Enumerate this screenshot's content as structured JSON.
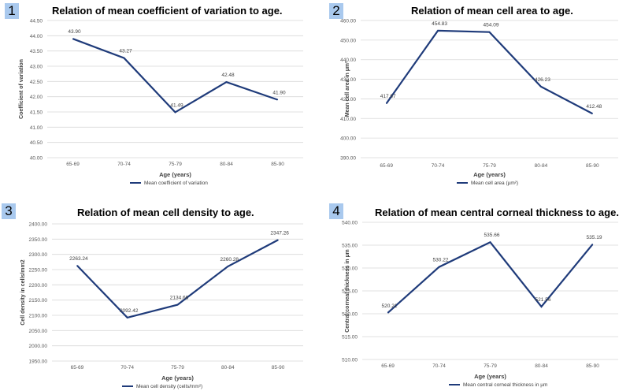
{
  "chart_data": [
    {
      "type": "line",
      "panel_number": "1",
      "title": "Relation of mean coefficient of variation to age.",
      "xlabel": "Age (years)",
      "ylabel": "Coefficient of variation",
      "categories": [
        "65-69",
        "70-74",
        "75-79",
        "80-84",
        "85-90"
      ],
      "series": [
        {
          "name": "Mean coefficient of variation",
          "values": [
            43.9,
            43.27,
            41.49,
            42.48,
            41.9
          ],
          "labels": [
            "43.90",
            "43.27",
            "41.49",
            "42.48",
            "41.90"
          ]
        }
      ],
      "ylim": [
        40.0,
        44.5
      ],
      "yticks": [
        "40.00",
        "40.50",
        "41.00",
        "41.50",
        "42.00",
        "42.50",
        "43.00",
        "43.50",
        "44.00",
        "44.50"
      ],
      "grid": true,
      "legend": "bottom",
      "color": "#1f3b7a"
    },
    {
      "type": "line",
      "panel_number": "2",
      "title": "Relation of mean cell area to age.",
      "xlabel": "Age (years)",
      "ylabel": "Mean cell area in µm²",
      "categories": [
        "65-69",
        "70-74",
        "75-79",
        "80-84",
        "85-90"
      ],
      "series": [
        {
          "name": "Mean cell area (µm²)",
          "values": [
            417.67,
            454.83,
            454.09,
            426.23,
            412.48
          ],
          "labels": [
            "417.67",
            "454.83",
            "454.09",
            "426.23",
            "412.48"
          ]
        }
      ],
      "ylim": [
        390.0,
        460.0
      ],
      "yticks": [
        "390.00",
        "400.00",
        "410.00",
        "420.00",
        "430.00",
        "440.00",
        "450.00",
        "460.00"
      ],
      "grid": true,
      "legend": "bottom",
      "color": "#1f3b7a"
    },
    {
      "type": "line",
      "panel_number": "3",
      "title": "Relation of mean cell density to age.",
      "xlabel": "Age (years)",
      "ylabel": "Cell density in cells/mm2",
      "categories": [
        "65-69",
        "70-74",
        "75-79",
        "80-84",
        "85-90"
      ],
      "series": [
        {
          "name": "Mean cell density (cells/mm²)",
          "values": [
            2263.24,
            2092.42,
            2134.66,
            2260.28,
            2347.26
          ],
          "labels": [
            "2263.24",
            "2092.42",
            "2134.66",
            "2260.28",
            "2347.26"
          ]
        }
      ],
      "ylim": [
        1950.0,
        2400.0
      ],
      "yticks": [
        "1950.00",
        "2000.00",
        "2050.00",
        "2100.00",
        "2150.00",
        "2200.00",
        "2250.00",
        "2300.00",
        "2350.00",
        "2400.00"
      ],
      "grid": true,
      "legend": "bottom",
      "color": "#1f3b7a"
    },
    {
      "type": "line",
      "panel_number": "4",
      "title": "Relation of mean central corneal thickness to age.",
      "xlabel": "Age (years)",
      "ylabel": "Central corneal thickness in µm",
      "categories": [
        "65-69",
        "70-74",
        "75-79",
        "80-84",
        "85-90"
      ],
      "series": [
        {
          "name": "Mean central corneal thickness in µm",
          "values": [
            520.21,
            530.22,
            535.66,
            521.56,
            535.19
          ],
          "labels": [
            "520.21",
            "530.22",
            "535.66",
            "521.56",
            "535.19"
          ]
        }
      ],
      "ylim": [
        510.0,
        540.0
      ],
      "yticks": [
        "510.00",
        "515.00",
        "520.00",
        "525.00",
        "530.00",
        "535.00",
        "540.00"
      ],
      "grid": true,
      "legend": "bottom",
      "color": "#1f3b7a"
    }
  ]
}
